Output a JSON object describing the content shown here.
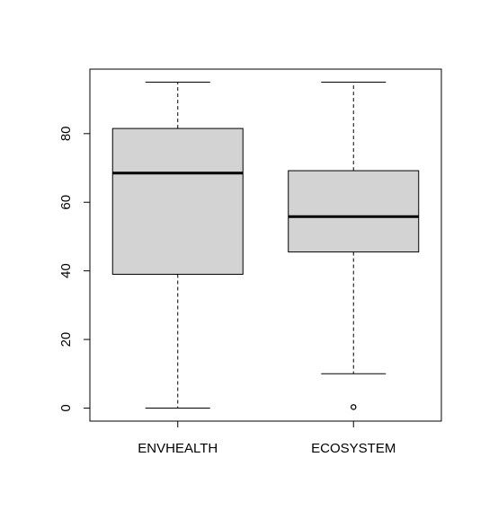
{
  "chart_data": {
    "type": "box",
    "title": "",
    "xlabel": "",
    "ylabel": "",
    "ylim": [
      -3.8,
      98.8
    ],
    "y_ticks": [
      0,
      20,
      40,
      60,
      80
    ],
    "grid": false,
    "legend": "none",
    "categories": [
      "ENVHEALTH",
      "ECOSYSTEM"
    ],
    "boxes": [
      {
        "label": "ENVHEALTH",
        "whisker_low": 0,
        "q1": 39,
        "median": 68.5,
        "q3": 81.5,
        "whisker_high": 95,
        "outliers": []
      },
      {
        "label": "ECOSYSTEM",
        "whisker_low": 10,
        "q1": 45.5,
        "median": 55.8,
        "q3": 69.2,
        "whisker_high": 95,
        "outliers": [
          0.3
        ]
      }
    ],
    "colors": {
      "box_fill": "#d3d3d3",
      "line": "#000000",
      "background": "#ffffff"
    }
  }
}
